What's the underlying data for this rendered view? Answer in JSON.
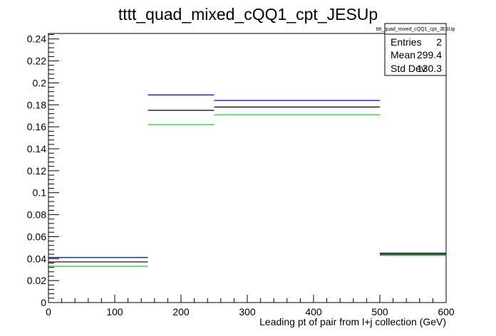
{
  "title": "tttt_quad_mixed_cQQ1_cpt_JESUp",
  "stats": {
    "name": "tttt_quad_mixed_cQQ1_cpt_JESUp",
    "rows": [
      {
        "label": "Entries",
        "value": "2"
      },
      {
        "label": "Mean",
        "value": "299.4"
      },
      {
        "label": "Std Dev",
        "value": "130.3"
      }
    ]
  },
  "chart_data": {
    "type": "histogram",
    "title": "tttt_quad_mixed_cQQ1_cpt_JESUp",
    "xlabel": "Leading pt of pair from l+j collection (GeV)",
    "ylabel": "",
    "xlim": [
      0,
      600
    ],
    "ylim": [
      0,
      0.245
    ],
    "x_ticks": [
      0,
      100,
      200,
      300,
      400,
      500,
      600
    ],
    "y_ticks": [
      0,
      0.02,
      0.04,
      0.06,
      0.08,
      0.1,
      0.12,
      0.14,
      0.16,
      0.18,
      0.2,
      0.22,
      0.24
    ],
    "bin_edges": [
      0,
      150,
      250,
      500,
      600
    ],
    "series": [
      {
        "color": "#0000cc",
        "values": [
          0.041,
          0.189,
          0.184,
          0.045
        ]
      },
      {
        "color": "#000000",
        "values": [
          0.037,
          0.175,
          0.178,
          0.044
        ]
      },
      {
        "color": "#00cc00",
        "values": [
          0.033,
          0.162,
          0.171,
          0.043
        ]
      }
    ],
    "grid": false,
    "legend": "top-right"
  }
}
